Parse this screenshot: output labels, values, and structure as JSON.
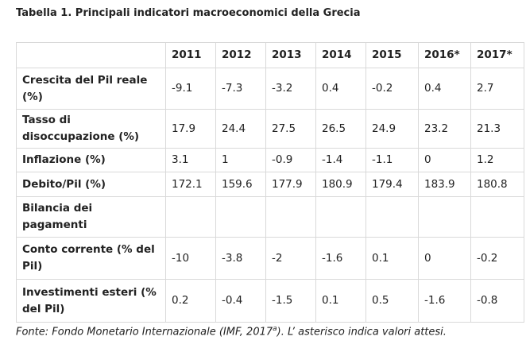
{
  "title": "Tabella 1. Principali indicatori macroeconomici della Grecia",
  "table": {
    "headers": [
      "",
      "2011",
      "2012",
      "2013",
      "2014",
      "2015",
      "2016*",
      "2017*"
    ],
    "rows": [
      {
        "label": "Crescita del Pil reale (%)",
        "values": [
          "-9.1",
          "-7.3",
          "-3.2",
          "0.4",
          "-0.2",
          "0.4",
          "2.7"
        ]
      },
      {
        "label": "Tasso di disoccupazione (%)",
        "values": [
          "17.9",
          "24.4",
          "27.5",
          "26.5",
          "24.9",
          "23.2",
          "21.3"
        ]
      },
      {
        "label": "Inflazione (%)",
        "values": [
          "3.1",
          "1",
          "-0.9",
          "-1.4",
          "-1.1",
          "0",
          "1.2"
        ]
      },
      {
        "label": "Debito/Pil (%)",
        "values": [
          "172.1",
          "159.6",
          "177.9",
          "180.9",
          "179.4",
          "183.9",
          "180.8"
        ]
      },
      {
        "label": "Bilancia dei pagamenti",
        "values": [
          "",
          "",
          "",
          "",
          "",
          "",
          ""
        ]
      },
      {
        "label": "Conto corrente (% del Pil)",
        "values": [
          "-10",
          "-3.8",
          "-2",
          "-1.6",
          "0.1",
          "0",
          "-0.2"
        ]
      },
      {
        "label": "Investimenti esteri (% del Pil)",
        "values": [
          "0.2",
          "-0.4",
          "-1.5",
          "0.1",
          "0.5",
          "-1.6",
          "-0.8"
        ]
      }
    ]
  },
  "source": {
    "before": "Fonte: Fondo Monetario Internazionale (IMF, 2017",
    "superscript": "a",
    "after": "). L’ asterisco indica valori attesi."
  }
}
